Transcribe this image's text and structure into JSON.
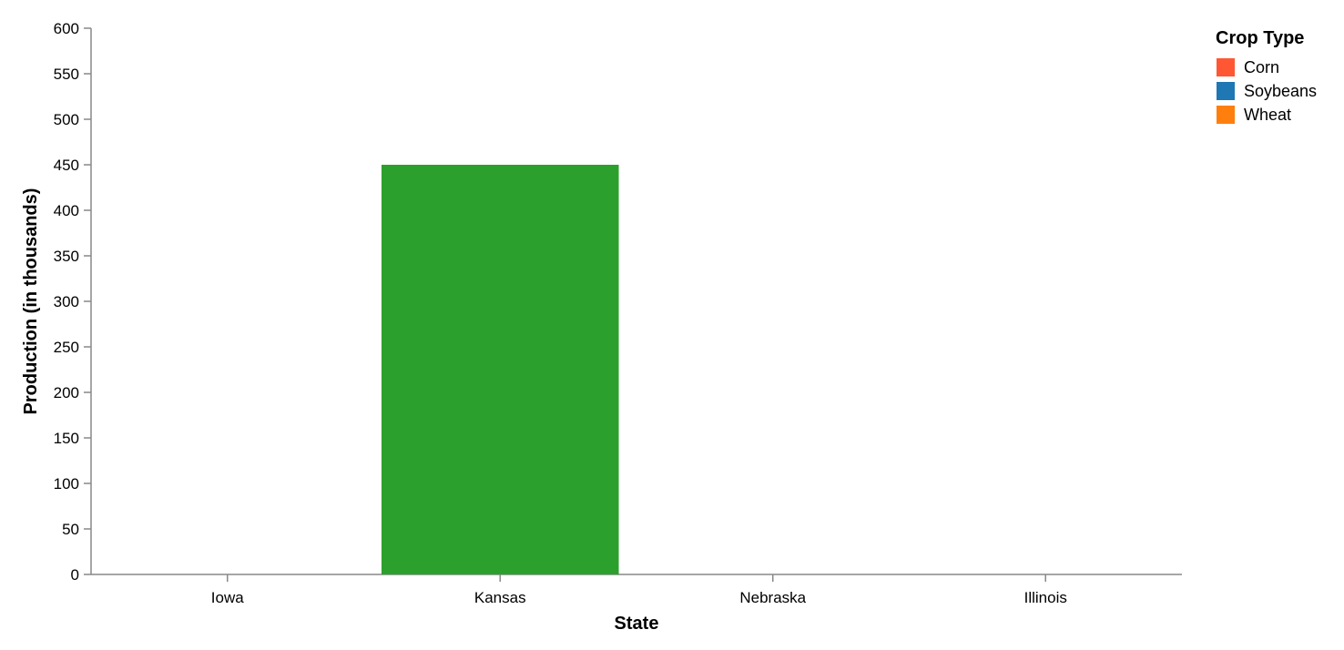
{
  "chart_data": {
    "type": "bar",
    "categories": [
      "Iowa",
      "Kansas",
      "Nebraska",
      "Illinois"
    ],
    "bars": [
      {
        "category": "Kansas",
        "value": 450,
        "color": "#2ca02c"
      }
    ],
    "xlabel": "State",
    "ylabel": "Production (in thousands)",
    "ylim": [
      0,
      600
    ],
    "yticks": [
      0,
      50,
      100,
      150,
      200,
      250,
      300,
      350,
      400,
      450,
      500,
      550,
      600
    ],
    "grid": false,
    "legend": {
      "title": "Crop Type",
      "placement": "top-right",
      "entries": [
        {
          "name": "Corn",
          "color": "#ff5733"
        },
        {
          "name": "Soybeans",
          "color": "#1f77b4"
        },
        {
          "name": "Wheat",
          "color": "#ff7f0e"
        }
      ]
    }
  }
}
